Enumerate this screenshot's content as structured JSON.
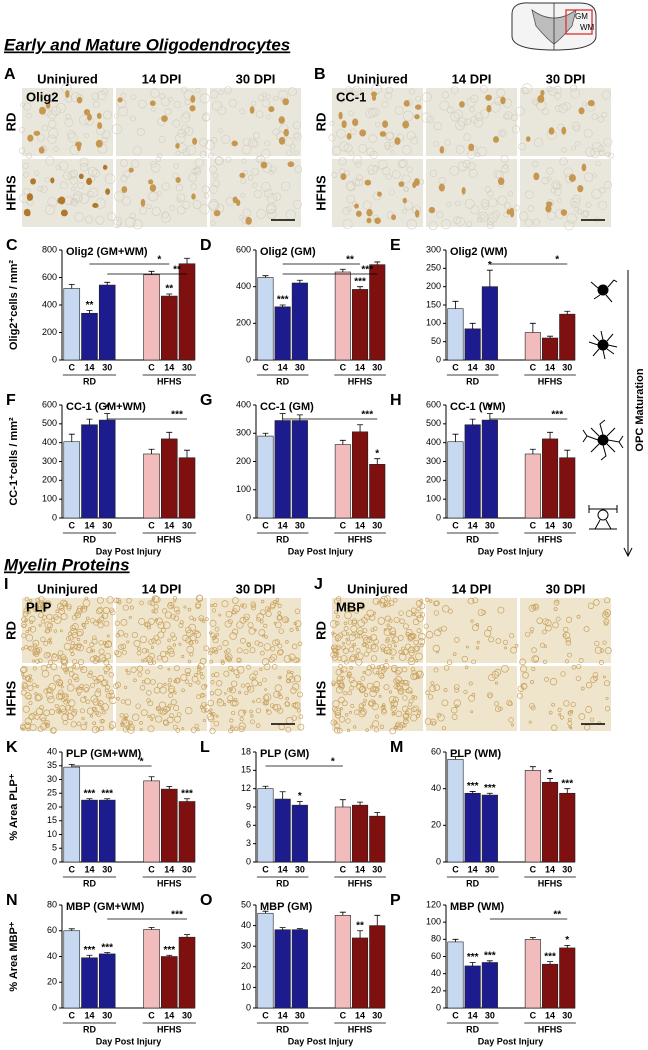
{
  "schematic": {
    "gm": "GM",
    "wm": "WM"
  },
  "sections": [
    "Early and Mature Oligodendrocytes",
    "Myelin Proteins"
  ],
  "maturation_label": "OPC Maturation",
  "micrograph_panels": [
    {
      "letter": "A",
      "stain": "Olig2",
      "columns": [
        "Uninjured",
        "14 DPI",
        "30 DPI"
      ],
      "rows": [
        "RD",
        "HFHS"
      ]
    },
    {
      "letter": "B",
      "stain": "CC-1",
      "columns": [
        "Uninjured",
        "14 DPI",
        "30 DPI"
      ],
      "rows": [
        "RD",
        "HFHS"
      ]
    },
    {
      "letter": "I",
      "stain": "PLP",
      "columns": [
        "Uninjured",
        "14 DPI",
        "30 DPI"
      ],
      "rows": [
        "RD",
        "HFHS"
      ]
    },
    {
      "letter": "J",
      "stain": "MBP",
      "columns": [
        "Uninjured",
        "14 DPI",
        "30 DPI"
      ],
      "rows": [
        "RD",
        "HFHS"
      ]
    }
  ],
  "chart_data": [
    {
      "type": "bar",
      "panel": "C",
      "title": "Olig2 (GM+WM)",
      "ylabel": "Olig2⁺cells / mm²",
      "categories": [
        "C",
        "14",
        "30",
        "C",
        "14",
        "30"
      ],
      "groups": [
        "RD",
        "HFHS"
      ],
      "values": [
        520,
        340,
        545,
        620,
        465,
        700
      ],
      "errors": [
        30,
        20,
        20,
        25,
        15,
        40
      ],
      "colors": [
        "#c6d9f1",
        "#1c1c8f",
        "#1c1c8f",
        "#f2bcbc",
        "#7f1010",
        "#7f1010"
      ],
      "ylim": [
        0,
        800
      ],
      "yticks": [
        0,
        200,
        400,
        600,
        800
      ],
      "significance": [
        {
          "bar": 1,
          "label": "**"
        },
        {
          "bar": 4,
          "label": "**"
        }
      ],
      "brackets": [
        {
          "from": 1,
          "to": 4,
          "label": "*"
        },
        {
          "from": 2,
          "to": 5,
          "label": "**"
        }
      ]
    },
    {
      "type": "bar",
      "panel": "D",
      "title": "Olig2 (GM)",
      "categories": [
        "C",
        "14",
        "30",
        "C",
        "14",
        "30"
      ],
      "groups": [
        "RD",
        "HFHS"
      ],
      "values": [
        450,
        290,
        420,
        480,
        385,
        520
      ],
      "errors": [
        10,
        10,
        15,
        15,
        15,
        15
      ],
      "colors": [
        "#c6d9f1",
        "#1c1c8f",
        "#1c1c8f",
        "#f2bcbc",
        "#7f1010",
        "#7f1010"
      ],
      "ylim": [
        0,
        600
      ],
      "yticks": [
        0,
        200,
        400,
        600
      ],
      "significance": [
        {
          "bar": 1,
          "label": "***"
        },
        {
          "bar": 4,
          "label": "***"
        }
      ],
      "brackets": [
        {
          "from": 1,
          "to": 4,
          "label": "**"
        },
        {
          "from": 1,
          "to": 5,
          "label": "***"
        }
      ]
    },
    {
      "type": "bar",
      "panel": "E",
      "title": "Olig2 (WM)",
      "categories": [
        "C",
        "14",
        "30",
        "C",
        "14",
        "30"
      ],
      "groups": [
        "RD",
        "HFHS"
      ],
      "values": [
        140,
        85,
        200,
        75,
        60,
        125
      ],
      "errors": [
        20,
        15,
        45,
        25,
        5,
        8
      ],
      "colors": [
        "#c6d9f1",
        "#1c1c8f",
        "#1c1c8f",
        "#f2bcbc",
        "#7f1010",
        "#7f1010"
      ],
      "ylim": [
        0,
        300
      ],
      "yticks": [
        0,
        50,
        100,
        150,
        200,
        250,
        300
      ],
      "significance": [
        {
          "bar": 2,
          "label": "*"
        }
      ],
      "brackets": [
        {
          "from": 2,
          "to": 5,
          "label": "*"
        }
      ]
    },
    {
      "type": "bar",
      "panel": "F",
      "title": "CC-1 (GM+WM)",
      "ylabel": "CC-1⁺cells / mm²",
      "xlabel": "Day Post Injury",
      "categories": [
        "C",
        "14",
        "30",
        "C",
        "14",
        "30"
      ],
      "groups": [
        "RD",
        "HFHS"
      ],
      "values": [
        405,
        495,
        520,
        340,
        420,
        320
      ],
      "errors": [
        40,
        30,
        35,
        25,
        35,
        40
      ],
      "colors": [
        "#c6d9f1",
        "#1c1c8f",
        "#1c1c8f",
        "#f2bcbc",
        "#7f1010",
        "#7f1010"
      ],
      "ylim": [
        0,
        600
      ],
      "yticks": [
        0,
        100,
        200,
        300,
        400,
        500,
        600
      ],
      "significance": [
        {
          "bar": 2,
          "label": "*"
        }
      ],
      "brackets": [
        {
          "from": 2,
          "to": 5,
          "label": "***"
        }
      ]
    },
    {
      "type": "bar",
      "panel": "G",
      "title": "CC-1 (GM)",
      "xlabel": "Day Post Injury",
      "categories": [
        "C",
        "14",
        "30",
        "C",
        "14",
        "30"
      ],
      "groups": [
        "RD",
        "HFHS"
      ],
      "values": [
        290,
        345,
        345,
        260,
        305,
        190
      ],
      "errors": [
        10,
        25,
        20,
        15,
        25,
        20
      ],
      "colors": [
        "#c6d9f1",
        "#1c1c8f",
        "#1c1c8f",
        "#f2bcbc",
        "#7f1010",
        "#7f1010"
      ],
      "ylim": [
        0,
        400
      ],
      "yticks": [
        0,
        100,
        200,
        300,
        400
      ],
      "significance": [
        {
          "bar": 5,
          "label": "*"
        }
      ],
      "brackets": [
        {
          "from": 1,
          "to": 5,
          "label": "***"
        }
      ]
    },
    {
      "type": "bar",
      "panel": "H",
      "title": "CC-1 (WM)",
      "xlabel": "Day Post Injury",
      "categories": [
        "C",
        "14",
        "30",
        "C",
        "14",
        "30"
      ],
      "groups": [
        "RD",
        "HFHS"
      ],
      "values": [
        405,
        495,
        520,
        340,
        420,
        320
      ],
      "errors": [
        40,
        30,
        35,
        25,
        35,
        40
      ],
      "colors": [
        "#c6d9f1",
        "#1c1c8f",
        "#1c1c8f",
        "#f2bcbc",
        "#7f1010",
        "#7f1010"
      ],
      "ylim": [
        0,
        600
      ],
      "yticks": [
        0,
        100,
        200,
        300,
        400,
        500,
        600
      ],
      "significance": [
        {
          "bar": 2,
          "label": "*"
        }
      ],
      "brackets": [
        {
          "from": 2,
          "to": 5,
          "label": "***"
        }
      ]
    },
    {
      "type": "bar",
      "panel": "K",
      "title": "PLP (GM+WM)",
      "ylabel": "% Area PLP⁺",
      "categories": [
        "C",
        "14",
        "30",
        "C",
        "14",
        "30"
      ],
      "groups": [
        "RD",
        "HFHS"
      ],
      "values": [
        34.5,
        22.5,
        22.5,
        29.5,
        26.5,
        22
      ],
      "errors": [
        1,
        0.5,
        0.5,
        1.5,
        1,
        1
      ],
      "colors": [
        "#c6d9f1",
        "#1c1c8f",
        "#1c1c8f",
        "#f2bcbc",
        "#7f1010",
        "#7f1010"
      ],
      "ylim": [
        0,
        40
      ],
      "yticks": [
        0,
        5,
        10,
        15,
        20,
        25,
        30,
        35,
        40
      ],
      "significance": [
        {
          "bar": 1,
          "label": "***"
        },
        {
          "bar": 2,
          "label": "***"
        },
        {
          "bar": 5,
          "label": "***"
        }
      ],
      "brackets": [
        {
          "from": 0,
          "to": 3,
          "label": "*"
        }
      ]
    },
    {
      "type": "bar",
      "panel": "L",
      "title": "PLP (GM)",
      "categories": [
        "C",
        "14",
        "30",
        "C",
        "14",
        "30"
      ],
      "groups": [
        "RD",
        "HFHS"
      ],
      "values": [
        12,
        10.3,
        9.3,
        9,
        9.3,
        7.5
      ],
      "errors": [
        0.4,
        1.2,
        0.6,
        1.2,
        0.5,
        0.6
      ],
      "colors": [
        "#c6d9f1",
        "#1c1c8f",
        "#1c1c8f",
        "#f2bcbc",
        "#7f1010",
        "#7f1010"
      ],
      "ylim": [
        0,
        18
      ],
      "yticks": [
        0,
        3,
        6,
        9,
        12,
        15,
        18
      ],
      "significance": [
        {
          "bar": 2,
          "label": "*"
        }
      ],
      "brackets": [
        {
          "from": 0,
          "to": 3,
          "label": "*"
        }
      ]
    },
    {
      "type": "bar",
      "panel": "M",
      "title": "PLP (WM)",
      "categories": [
        "C",
        "14",
        "30",
        "C",
        "14",
        "30"
      ],
      "groups": [
        "RD",
        "HFHS"
      ],
      "values": [
        56,
        37.5,
        36.5,
        50,
        43.5,
        37.5
      ],
      "errors": [
        1.5,
        1,
        1,
        2,
        2,
        2.5
      ],
      "colors": [
        "#c6d9f1",
        "#1c1c8f",
        "#1c1c8f",
        "#f2bcbc",
        "#7f1010",
        "#7f1010"
      ],
      "ylim": [
        0,
        60
      ],
      "yticks": [
        0,
        20,
        40,
        60
      ],
      "significance": [
        {
          "bar": 1,
          "label": "***"
        },
        {
          "bar": 2,
          "label": "***"
        },
        {
          "bar": 4,
          "label": "*"
        },
        {
          "bar": 5,
          "label": "***"
        }
      ],
      "brackets": []
    },
    {
      "type": "bar",
      "panel": "N",
      "title": "MBP (GM+WM)",
      "ylabel": "% Area MBP⁺",
      "xlabel": "Day Post Injury",
      "categories": [
        "C",
        "14",
        "30",
        "C",
        "14",
        "30"
      ],
      "groups": [
        "RD",
        "HFHS"
      ],
      "values": [
        60,
        39,
        42,
        61,
        40,
        55
      ],
      "errors": [
        1.5,
        2,
        1,
        1.5,
        1,
        2
      ],
      "colors": [
        "#c6d9f1",
        "#1c1c8f",
        "#1c1c8f",
        "#f2bcbc",
        "#7f1010",
        "#7f1010"
      ],
      "ylim": [
        0,
        80
      ],
      "yticks": [
        0,
        20,
        40,
        60,
        80
      ],
      "significance": [
        {
          "bar": 1,
          "label": "***"
        },
        {
          "bar": 2,
          "label": "***"
        },
        {
          "bar": 4,
          "label": "***"
        }
      ],
      "brackets": [
        {
          "from": 2,
          "to": 5,
          "label": "***"
        }
      ]
    },
    {
      "type": "bar",
      "panel": "O",
      "title": "MBP (GM)",
      "xlabel": "Day Post Injury",
      "categories": [
        "C",
        "14",
        "30",
        "C",
        "14",
        "30"
      ],
      "groups": [
        "RD",
        "HFHS"
      ],
      "values": [
        46,
        38,
        38,
        45,
        34,
        40
      ],
      "errors": [
        1,
        1,
        0.5,
        1.5,
        3.5,
        5
      ],
      "colors": [
        "#c6d9f1",
        "#1c1c8f",
        "#1c1c8f",
        "#f2bcbc",
        "#7f1010",
        "#7f1010"
      ],
      "ylim": [
        0,
        50
      ],
      "yticks": [
        0,
        10,
        20,
        30,
        40,
        50
      ],
      "significance": [
        {
          "bar": 4,
          "label": "**"
        }
      ],
      "brackets": []
    },
    {
      "type": "bar",
      "panel": "P",
      "title": "MBP (WM)",
      "xlabel": "Day Post Injury",
      "categories": [
        "C",
        "14",
        "30",
        "C",
        "14",
        "30"
      ],
      "groups": [
        "RD",
        "HFHS"
      ],
      "values": [
        77,
        49,
        53,
        80,
        51,
        70
      ],
      "errors": [
        3,
        4,
        2,
        2,
        3,
        3
      ],
      "colors": [
        "#c6d9f1",
        "#1c1c8f",
        "#1c1c8f",
        "#f2bcbc",
        "#7f1010",
        "#7f1010"
      ],
      "ylim": [
        0,
        120
      ],
      "yticks": [
        0,
        20,
        40,
        60,
        80,
        100,
        120
      ],
      "significance": [
        {
          "bar": 1,
          "label": "***"
        },
        {
          "bar": 2,
          "label": "***"
        },
        {
          "bar": 4,
          "label": "***"
        },
        {
          "bar": 5,
          "label": "*"
        }
      ],
      "brackets": [
        {
          "from": 2,
          "to": 5,
          "label": "**"
        }
      ]
    }
  ]
}
